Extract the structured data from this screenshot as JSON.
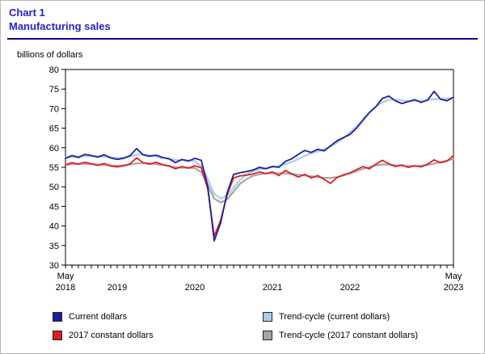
{
  "page": {
    "chart_label": "Chart 1",
    "title": "Manufacturing sales"
  },
  "colors": {
    "title_blue": "#2222cc",
    "rule_blue": "#00008b",
    "axis": "#000000"
  },
  "chart_data": {
    "type": "line",
    "title": "Manufacturing sales",
    "ylabel": "billions of dollars",
    "ylim": [
      30,
      80
    ],
    "y_ticks": [
      30,
      35,
      40,
      45,
      50,
      55,
      60,
      65,
      70,
      75,
      80
    ],
    "grid": "off",
    "legend_position": "bottom",
    "x": [
      "2018-05",
      "2018-06",
      "2018-07",
      "2018-08",
      "2018-09",
      "2018-10",
      "2018-11",
      "2018-12",
      "2019-01",
      "2019-02",
      "2019-03",
      "2019-04",
      "2019-05",
      "2019-06",
      "2019-07",
      "2019-08",
      "2019-09",
      "2019-10",
      "2019-11",
      "2019-12",
      "2020-01",
      "2020-02",
      "2020-03",
      "2020-04",
      "2020-05",
      "2020-06",
      "2020-07",
      "2020-08",
      "2020-09",
      "2020-10",
      "2020-11",
      "2020-12",
      "2021-01",
      "2021-02",
      "2021-03",
      "2021-04",
      "2021-05",
      "2021-06",
      "2021-07",
      "2021-08",
      "2021-09",
      "2021-10",
      "2021-11",
      "2021-12",
      "2022-01",
      "2022-02",
      "2022-03",
      "2022-04",
      "2022-05",
      "2022-06",
      "2022-07",
      "2022-08",
      "2022-09",
      "2022-10",
      "2022-11",
      "2022-12",
      "2023-01",
      "2023-02",
      "2023-03",
      "2023-04",
      "2023-05"
    ],
    "x_ticks": [
      {
        "index": 0,
        "top": "May",
        "year": "2018"
      },
      {
        "index": 8,
        "year": "2019"
      },
      {
        "index": 20,
        "year": "2020"
      },
      {
        "index": 32,
        "year": "2021"
      },
      {
        "index": 44,
        "year": "2022"
      },
      {
        "index": 60,
        "top": "May",
        "year": "2023"
      }
    ],
    "series": [
      {
        "name": "Current dollars",
        "color": "#1b219c",
        "width": 1.8,
        "z": 4,
        "values": [
          57.3,
          58.0,
          57.5,
          58.3,
          58.0,
          57.6,
          58.2,
          57.4,
          57.0,
          57.3,
          58.0,
          59.8,
          58.2,
          57.8,
          58.1,
          57.5,
          57.2,
          56.2,
          57.0,
          56.6,
          57.3,
          56.8,
          50.2,
          36.2,
          40.8,
          48.5,
          53.2,
          53.6,
          53.9,
          54.3,
          55.0,
          54.6,
          55.2,
          55.0,
          56.5,
          57.2,
          58.3,
          59.3,
          58.8,
          59.6,
          59.2,
          60.5,
          61.8,
          62.6,
          63.4,
          65.0,
          67.0,
          69.0,
          70.5,
          72.6,
          73.2,
          72.0,
          71.3,
          71.8,
          72.3,
          71.6,
          72.2,
          74.4,
          72.4,
          72.0,
          72.9
        ]
      },
      {
        "name": "2017 constant dollars",
        "color": "#e01f1f",
        "width": 1.8,
        "z": 3,
        "values": [
          55.6,
          56.2,
          55.8,
          56.3,
          55.9,
          55.5,
          56.0,
          55.3,
          55.1,
          55.4,
          55.9,
          57.4,
          56.2,
          55.8,
          56.3,
          55.7,
          55.4,
          54.6,
          55.2,
          54.8,
          55.4,
          54.9,
          49.5,
          37.4,
          41.5,
          48.0,
          52.3,
          52.8,
          53.0,
          53.3,
          53.8,
          53.4,
          53.8,
          52.9,
          54.2,
          53.3,
          52.5,
          53.2,
          52.3,
          52.9,
          51.9,
          50.9,
          52.4,
          53.1,
          53.6,
          54.4,
          55.2,
          54.6,
          55.8,
          56.8,
          55.9,
          55.2,
          55.6,
          55.0,
          55.4,
          55.1,
          55.8,
          56.9,
          56.2,
          56.6,
          58.0
        ]
      },
      {
        "name": "Trend-cycle (current dollars)",
        "color": "#a9cdea",
        "width": 2.2,
        "z": 2,
        "values": [
          57.6,
          57.7,
          57.8,
          57.9,
          57.9,
          57.8,
          57.7,
          57.5,
          57.4,
          57.5,
          57.8,
          58.2,
          58.3,
          58.1,
          57.8,
          57.5,
          57.2,
          56.9,
          56.8,
          56.8,
          56.6,
          55.3,
          52.0,
          48.2,
          47.0,
          47.8,
          49.8,
          51.8,
          53.2,
          54.0,
          54.5,
          54.8,
          55.1,
          55.4,
          55.8,
          56.4,
          57.1,
          57.9,
          58.6,
          59.1,
          59.6,
          60.3,
          61.3,
          62.5,
          63.9,
          65.5,
          67.3,
          69.0,
          70.5,
          71.6,
          72.2,
          72.3,
          72.1,
          71.9,
          71.9,
          72.0,
          72.2,
          72.4,
          72.5,
          72.6,
          72.7
        ]
      },
      {
        "name": "Trend-cycle (2017 constant dollars)",
        "color": "#a6a6a6",
        "width": 2.2,
        "z": 1,
        "values": [
          55.7,
          55.8,
          55.9,
          55.9,
          55.8,
          55.7,
          55.6,
          55.5,
          55.4,
          55.5,
          55.7,
          56.0,
          56.1,
          56.0,
          55.8,
          55.6,
          55.3,
          55.0,
          54.9,
          54.9,
          54.8,
          53.8,
          50.5,
          47.0,
          46.0,
          46.8,
          48.8,
          50.8,
          52.0,
          52.8,
          53.2,
          53.4,
          53.5,
          53.5,
          53.4,
          53.3,
          53.1,
          52.9,
          52.7,
          52.5,
          52.3,
          52.3,
          52.5,
          52.9,
          53.4,
          54.0,
          54.6,
          55.1,
          55.5,
          55.7,
          55.7,
          55.5,
          55.4,
          55.3,
          55.3,
          55.4,
          55.6,
          55.9,
          56.3,
          56.7,
          57.2
        ]
      }
    ]
  }
}
